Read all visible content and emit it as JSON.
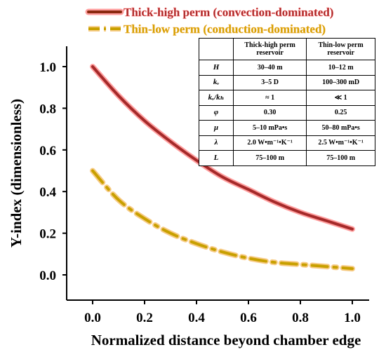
{
  "chart_data": {
    "type": "line",
    "title": "",
    "xlabel": "Normalized distance beyond chamber edge",
    "ylabel": "Y-index (dimensionless)",
    "xlim": [
      -0.1,
      1.05
    ],
    "ylim": [
      -0.12,
      1.1
    ],
    "x_ticks": [
      "0.0",
      "0.2",
      "0.4",
      "0.6",
      "0.8",
      "1.0"
    ],
    "y_ticks": [
      "0.0",
      "0.2",
      "0.4",
      "0.6",
      "0.8",
      "1.0"
    ],
    "legend_position": "top-left",
    "grid": false,
    "series": [
      {
        "name": "Thick-high perm (convection-dominated)",
        "color": "#a52a2a",
        "halo_color": "#ff5050",
        "style": "solid",
        "x": [
          0.0,
          0.1,
          0.2,
          0.3,
          0.4,
          0.5,
          0.6,
          0.7,
          0.8,
          0.9,
          1.0
        ],
        "y": [
          1.0,
          0.86,
          0.74,
          0.64,
          0.55,
          0.47,
          0.41,
          0.35,
          0.3,
          0.26,
          0.22
        ]
      },
      {
        "name": "Thin-low perm (conduction-dominated)",
        "color": "#c8a000",
        "halo_color": "#f0a020",
        "style": "dashdot",
        "x": [
          0.0,
          0.1,
          0.2,
          0.3,
          0.4,
          0.5,
          0.6,
          0.7,
          0.8,
          0.9,
          1.0
        ],
        "y": [
          0.5,
          0.36,
          0.27,
          0.2,
          0.15,
          0.11,
          0.08,
          0.06,
          0.05,
          0.04,
          0.03
        ]
      }
    ]
  },
  "table": {
    "headers": [
      "",
      "Thick-high perm reservoir",
      "Thin-low perm reservoir"
    ],
    "rows": [
      {
        "sym": "H",
        "a": "30–40 m",
        "b": "10–12 m"
      },
      {
        "sym": "kᵥ",
        "a": "3–5 D",
        "b": "100–300 mD"
      },
      {
        "sym": "kᵥ/kₕ",
        "a": "≈ 1",
        "b": "≪ 1"
      },
      {
        "sym": "φ",
        "a": "0.30",
        "b": "0.25"
      },
      {
        "sym": "μ",
        "a": "5–10 mPa•s",
        "b": "50–80 mPa•s"
      },
      {
        "sym": "λ",
        "a": "2.0 W•m⁻¹•K⁻¹",
        "b": "2.5 W•m⁻¹•K⁻¹"
      },
      {
        "sym": "L",
        "a": "75–100 m",
        "b": "75–100 m"
      }
    ]
  }
}
